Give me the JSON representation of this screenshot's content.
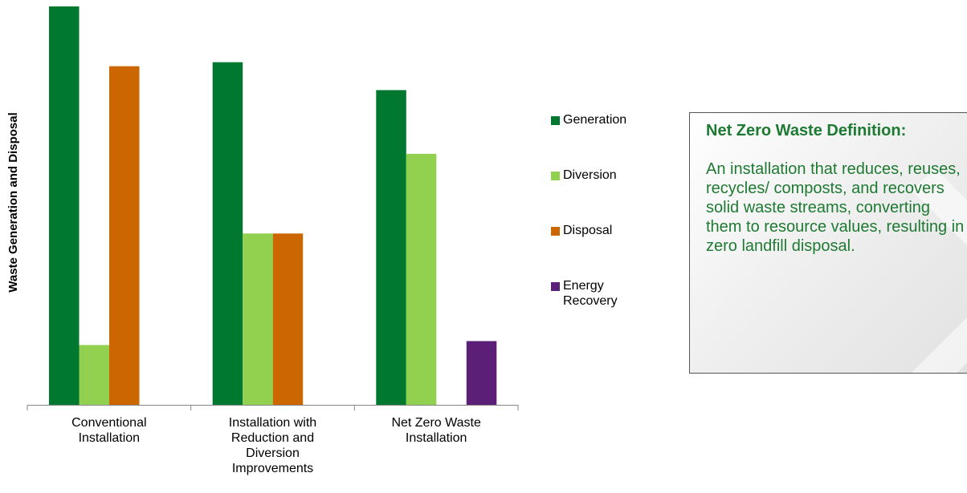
{
  "chart_data": {
    "type": "bar",
    "ylabel": "Waste Generation and Disposal",
    "categories": [
      [
        "Conventional",
        "Installation"
      ],
      [
        "Installation with",
        "Reduction and",
        "Diversion",
        "Improvements"
      ],
      [
        "Net Zero Waste",
        "Installation"
      ]
    ],
    "series": [
      {
        "name": "Generation",
        "color": "#00782f",
        "values": [
          100,
          86,
          79
        ]
      },
      {
        "name": "Diversion",
        "color": "#92d050",
        "values": [
          15,
          43,
          63
        ]
      },
      {
        "name": "Disposal",
        "color": "#cc6600",
        "values": [
          85,
          43,
          0
        ]
      },
      {
        "name": "Energy Recovery",
        "color": "#5b1f78",
        "values": [
          0,
          0,
          16
        ]
      }
    ],
    "legend_labels": [
      [
        "Generation"
      ],
      [
        "Diversion"
      ],
      [
        "Disposal"
      ],
      [
        "Energy",
        "Recovery"
      ]
    ],
    "ylim": [
      0,
      100
    ],
    "legend_position": "right",
    "grid": false
  },
  "definition": {
    "title": "Net Zero Waste Definition:",
    "text": "An installation that reduces, reuses, recycles/ composts, and recovers solid waste streams, converting them to resource values, resulting in zero landfill disposal."
  }
}
